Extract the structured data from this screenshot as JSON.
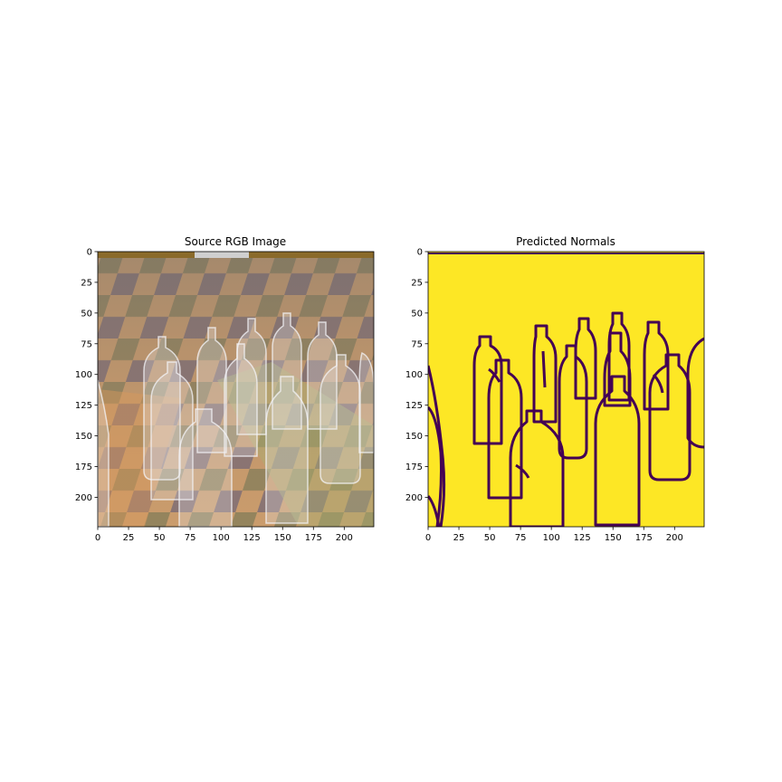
{
  "chart_data": [
    {
      "type": "image",
      "title": "Source RGB Image",
      "xlim": [
        0,
        224
      ],
      "ylim": [
        224,
        0
      ],
      "xticks": [
        0,
        25,
        50,
        75,
        100,
        125,
        150,
        175,
        200
      ],
      "yticks": [
        0,
        25,
        50,
        75,
        100,
        125,
        150,
        175,
        200
      ],
      "content": "photo of transparent plastic bottles standing on a colored checkerboard floor"
    },
    {
      "type": "image",
      "title": "Predicted Normals",
      "xlim": [
        0,
        224
      ],
      "ylim": [
        224,
        0
      ],
      "xticks": [
        0,
        25,
        50,
        75,
        100,
        125,
        150,
        175,
        200
      ],
      "yticks": [
        0,
        25,
        50,
        75,
        100,
        125,
        150,
        175,
        200
      ],
      "content": "binary mask: yellow background with dark purple bottle outlines",
      "colors": {
        "background": "#fde725",
        "outline": "#440154"
      }
    }
  ]
}
